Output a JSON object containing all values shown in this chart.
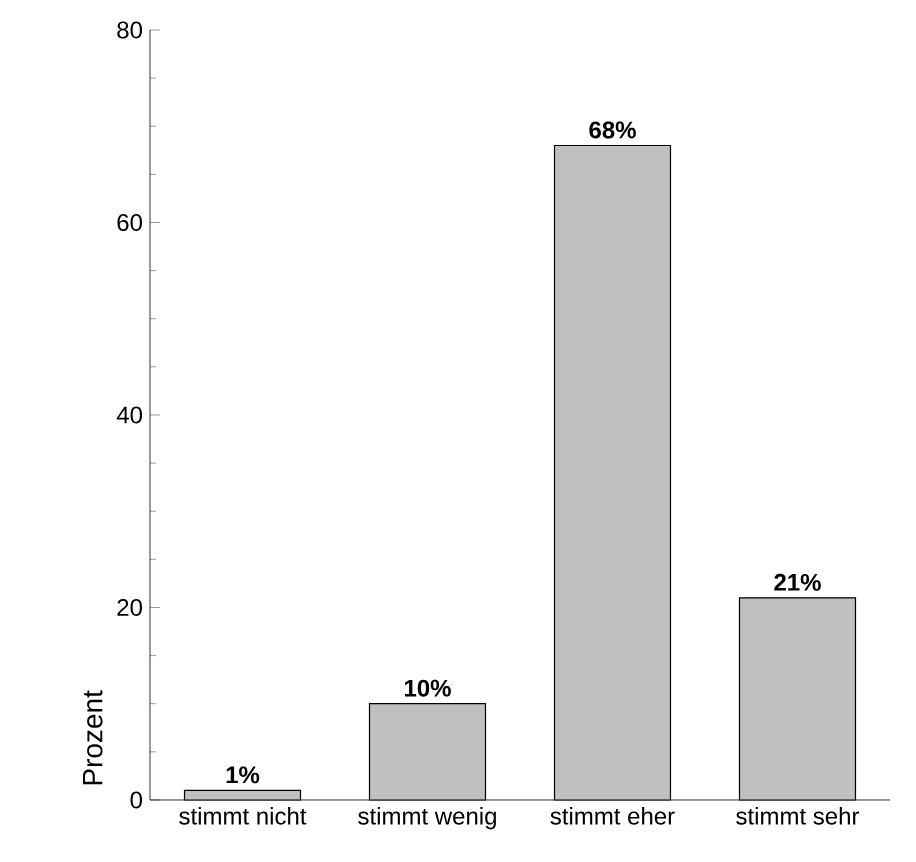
{
  "chart_data": {
    "type": "bar",
    "ylabel": "Prozent",
    "categories": [
      "stimmt nicht",
      "stimmt wenig",
      "stimmt eher",
      "stimmt sehr"
    ],
    "values": [
      1,
      10,
      68,
      21
    ],
    "value_labels": [
      "1%",
      "10%",
      "68%",
      "21%"
    ],
    "color": "#c0c0c0",
    "ylim": [
      0,
      80
    ],
    "yticks": [
      0,
      20,
      40,
      60,
      80
    ],
    "grid": false
  }
}
